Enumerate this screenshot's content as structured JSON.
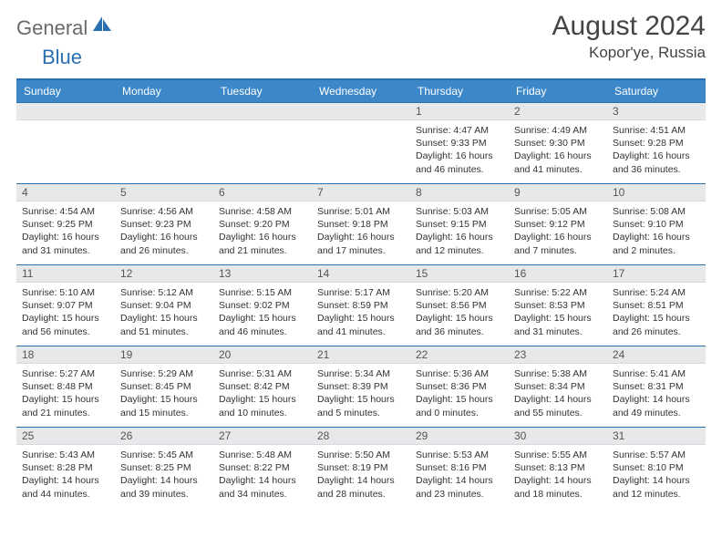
{
  "logo": {
    "general": "General",
    "blue": "Blue"
  },
  "title": "August 2024",
  "location": "Kopor'ye, Russia",
  "colors": {
    "header_bg": "#3b87c8",
    "border": "#2a6fb0",
    "daynum_bg": "#e7e8ea",
    "text": "#333333"
  },
  "dow": [
    "Sunday",
    "Monday",
    "Tuesday",
    "Wednesday",
    "Thursday",
    "Friday",
    "Saturday"
  ],
  "weeks": [
    [
      {
        "n": "",
        "sr": "",
        "ss": "",
        "dl": ""
      },
      {
        "n": "",
        "sr": "",
        "ss": "",
        "dl": ""
      },
      {
        "n": "",
        "sr": "",
        "ss": "",
        "dl": ""
      },
      {
        "n": "",
        "sr": "",
        "ss": "",
        "dl": ""
      },
      {
        "n": "1",
        "sr": "Sunrise: 4:47 AM",
        "ss": "Sunset: 9:33 PM",
        "dl": "Daylight: 16 hours and 46 minutes."
      },
      {
        "n": "2",
        "sr": "Sunrise: 4:49 AM",
        "ss": "Sunset: 9:30 PM",
        "dl": "Daylight: 16 hours and 41 minutes."
      },
      {
        "n": "3",
        "sr": "Sunrise: 4:51 AM",
        "ss": "Sunset: 9:28 PM",
        "dl": "Daylight: 16 hours and 36 minutes."
      }
    ],
    [
      {
        "n": "4",
        "sr": "Sunrise: 4:54 AM",
        "ss": "Sunset: 9:25 PM",
        "dl": "Daylight: 16 hours and 31 minutes."
      },
      {
        "n": "5",
        "sr": "Sunrise: 4:56 AM",
        "ss": "Sunset: 9:23 PM",
        "dl": "Daylight: 16 hours and 26 minutes."
      },
      {
        "n": "6",
        "sr": "Sunrise: 4:58 AM",
        "ss": "Sunset: 9:20 PM",
        "dl": "Daylight: 16 hours and 21 minutes."
      },
      {
        "n": "7",
        "sr": "Sunrise: 5:01 AM",
        "ss": "Sunset: 9:18 PM",
        "dl": "Daylight: 16 hours and 17 minutes."
      },
      {
        "n": "8",
        "sr": "Sunrise: 5:03 AM",
        "ss": "Sunset: 9:15 PM",
        "dl": "Daylight: 16 hours and 12 minutes."
      },
      {
        "n": "9",
        "sr": "Sunrise: 5:05 AM",
        "ss": "Sunset: 9:12 PM",
        "dl": "Daylight: 16 hours and 7 minutes."
      },
      {
        "n": "10",
        "sr": "Sunrise: 5:08 AM",
        "ss": "Sunset: 9:10 PM",
        "dl": "Daylight: 16 hours and 2 minutes."
      }
    ],
    [
      {
        "n": "11",
        "sr": "Sunrise: 5:10 AM",
        "ss": "Sunset: 9:07 PM",
        "dl": "Daylight: 15 hours and 56 minutes."
      },
      {
        "n": "12",
        "sr": "Sunrise: 5:12 AM",
        "ss": "Sunset: 9:04 PM",
        "dl": "Daylight: 15 hours and 51 minutes."
      },
      {
        "n": "13",
        "sr": "Sunrise: 5:15 AM",
        "ss": "Sunset: 9:02 PM",
        "dl": "Daylight: 15 hours and 46 minutes."
      },
      {
        "n": "14",
        "sr": "Sunrise: 5:17 AM",
        "ss": "Sunset: 8:59 PM",
        "dl": "Daylight: 15 hours and 41 minutes."
      },
      {
        "n": "15",
        "sr": "Sunrise: 5:20 AM",
        "ss": "Sunset: 8:56 PM",
        "dl": "Daylight: 15 hours and 36 minutes."
      },
      {
        "n": "16",
        "sr": "Sunrise: 5:22 AM",
        "ss": "Sunset: 8:53 PM",
        "dl": "Daylight: 15 hours and 31 minutes."
      },
      {
        "n": "17",
        "sr": "Sunrise: 5:24 AM",
        "ss": "Sunset: 8:51 PM",
        "dl": "Daylight: 15 hours and 26 minutes."
      }
    ],
    [
      {
        "n": "18",
        "sr": "Sunrise: 5:27 AM",
        "ss": "Sunset: 8:48 PM",
        "dl": "Daylight: 15 hours and 21 minutes."
      },
      {
        "n": "19",
        "sr": "Sunrise: 5:29 AM",
        "ss": "Sunset: 8:45 PM",
        "dl": "Daylight: 15 hours and 15 minutes."
      },
      {
        "n": "20",
        "sr": "Sunrise: 5:31 AM",
        "ss": "Sunset: 8:42 PM",
        "dl": "Daylight: 15 hours and 10 minutes."
      },
      {
        "n": "21",
        "sr": "Sunrise: 5:34 AM",
        "ss": "Sunset: 8:39 PM",
        "dl": "Daylight: 15 hours and 5 minutes."
      },
      {
        "n": "22",
        "sr": "Sunrise: 5:36 AM",
        "ss": "Sunset: 8:36 PM",
        "dl": "Daylight: 15 hours and 0 minutes."
      },
      {
        "n": "23",
        "sr": "Sunrise: 5:38 AM",
        "ss": "Sunset: 8:34 PM",
        "dl": "Daylight: 14 hours and 55 minutes."
      },
      {
        "n": "24",
        "sr": "Sunrise: 5:41 AM",
        "ss": "Sunset: 8:31 PM",
        "dl": "Daylight: 14 hours and 49 minutes."
      }
    ],
    [
      {
        "n": "25",
        "sr": "Sunrise: 5:43 AM",
        "ss": "Sunset: 8:28 PM",
        "dl": "Daylight: 14 hours and 44 minutes."
      },
      {
        "n": "26",
        "sr": "Sunrise: 5:45 AM",
        "ss": "Sunset: 8:25 PM",
        "dl": "Daylight: 14 hours and 39 minutes."
      },
      {
        "n": "27",
        "sr": "Sunrise: 5:48 AM",
        "ss": "Sunset: 8:22 PM",
        "dl": "Daylight: 14 hours and 34 minutes."
      },
      {
        "n": "28",
        "sr": "Sunrise: 5:50 AM",
        "ss": "Sunset: 8:19 PM",
        "dl": "Daylight: 14 hours and 28 minutes."
      },
      {
        "n": "29",
        "sr": "Sunrise: 5:53 AM",
        "ss": "Sunset: 8:16 PM",
        "dl": "Daylight: 14 hours and 23 minutes."
      },
      {
        "n": "30",
        "sr": "Sunrise: 5:55 AM",
        "ss": "Sunset: 8:13 PM",
        "dl": "Daylight: 14 hours and 18 minutes."
      },
      {
        "n": "31",
        "sr": "Sunrise: 5:57 AM",
        "ss": "Sunset: 8:10 PM",
        "dl": "Daylight: 14 hours and 12 minutes."
      }
    ]
  ]
}
